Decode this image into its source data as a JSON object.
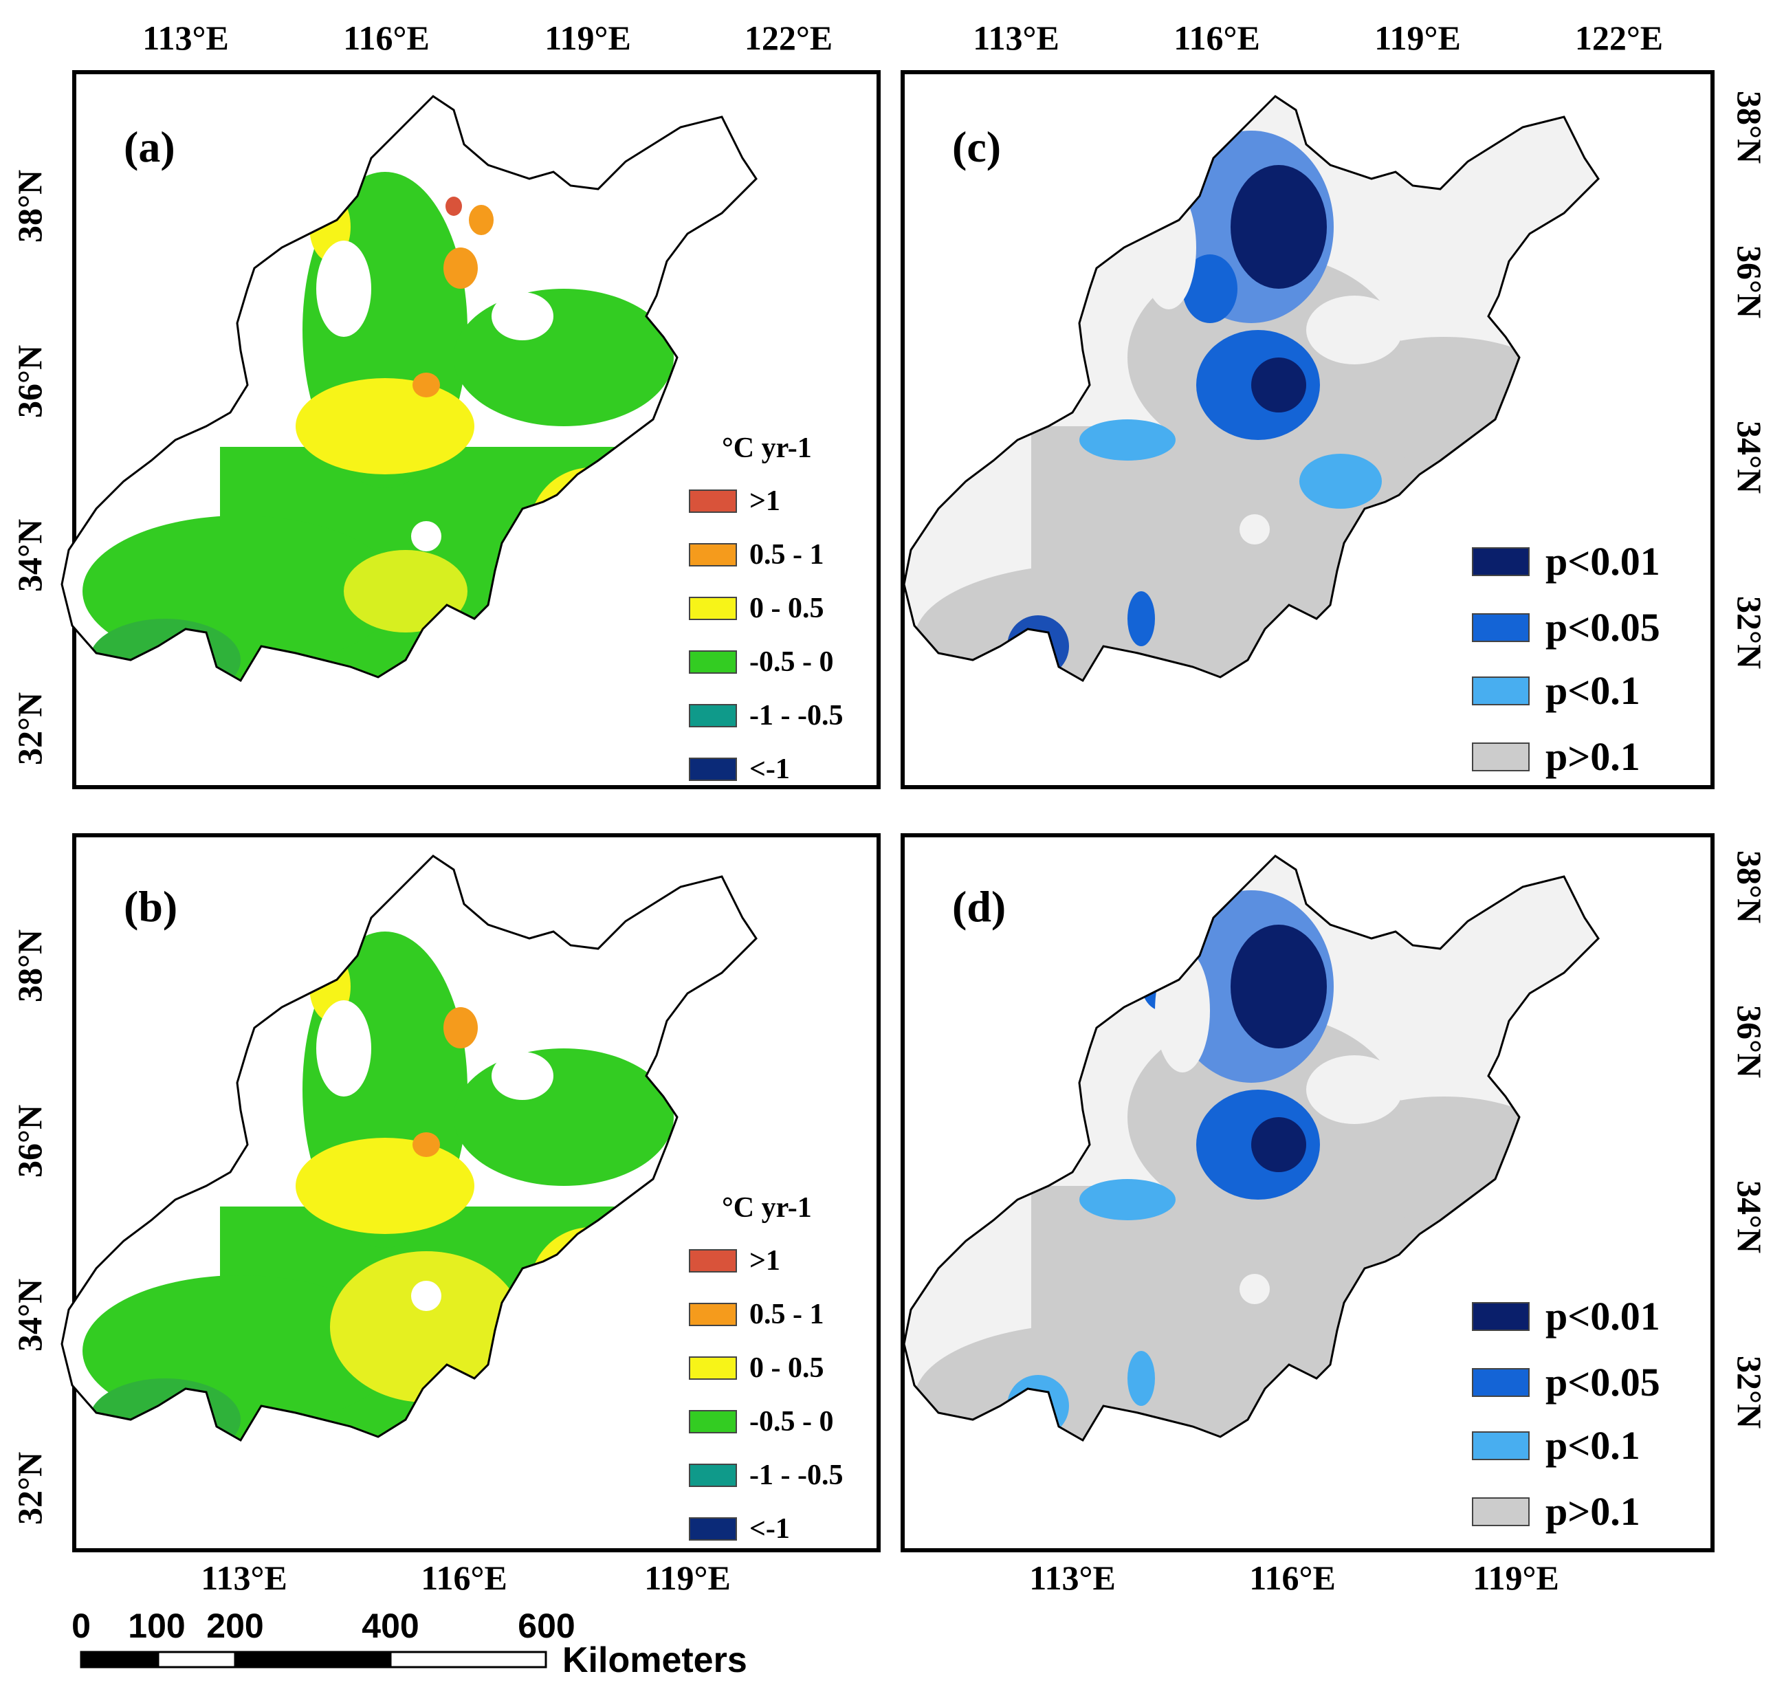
{
  "panels": [
    {
      "label": "(a)",
      "kind": "trend",
      "top_lon_ticks": [
        "113°E",
        "116°E",
        "119°E",
        "122°E"
      ],
      "left_lat_ticks": [
        "38°N",
        "36°N",
        "34°N",
        "32°N"
      ],
      "legend_title": "°C yr-1",
      "legend": [
        {
          "label": ">1",
          "color": "#d9533a"
        },
        {
          "label": "0.5 - 1",
          "color": "#f59b1c"
        },
        {
          "label": "0 - 0.5",
          "color": "#f7f418"
        },
        {
          "label": "-0.5 - 0",
          "color": "#33cc22"
        },
        {
          "label": "-1 - -0.5",
          "color": "#0f9a8a"
        },
        {
          "label": "<-1",
          "color": "#0b2a78"
        }
      ]
    },
    {
      "label": "(b)",
      "kind": "trend",
      "bottom_lon_ticks": [
        "113°E",
        "116°E",
        "119°E"
      ],
      "left_lat_ticks": [
        "38°N",
        "36°N",
        "34°N",
        "32°N"
      ],
      "legend_title": "°C yr-1",
      "legend": [
        {
          "label": ">1",
          "color": "#d9533a"
        },
        {
          "label": "0.5 - 1",
          "color": "#f59b1c"
        },
        {
          "label": "0 - 0.5",
          "color": "#f7f418"
        },
        {
          "label": "-0.5 - 0",
          "color": "#33cc22"
        },
        {
          "label": "-1 - -0.5",
          "color": "#0f9a8a"
        },
        {
          "label": "<-1",
          "color": "#0b2a78"
        }
      ]
    },
    {
      "label": "(c)",
      "kind": "significance",
      "top_lon_ticks": [
        "113°E",
        "116°E",
        "119°E",
        "122°E"
      ],
      "right_lat_ticks": [
        "38°N",
        "36°N",
        "34°N",
        "32°N"
      ],
      "legend": [
        {
          "label": "p<0.01",
          "color": "#0a1f6b"
        },
        {
          "label": "p<0.05",
          "color": "#1464d6"
        },
        {
          "label": "p<0.1",
          "color": "#48aef0"
        },
        {
          "label": "p>0.1",
          "color": "#cccccc"
        }
      ]
    },
    {
      "label": "(d)",
      "kind": "significance",
      "bottom_lon_ticks": [
        "113°E",
        "116°E",
        "119°E"
      ],
      "right_lat_ticks": [
        "38°N",
        "36°N",
        "34°N",
        "32°N"
      ],
      "legend": [
        {
          "label": "p<0.01",
          "color": "#0a1f6b"
        },
        {
          "label": "p<0.05",
          "color": "#1464d6"
        },
        {
          "label": "p<0.1",
          "color": "#48aef0"
        },
        {
          "label": "p>0.1",
          "color": "#cccccc"
        }
      ]
    }
  ],
  "scale_bar": {
    "ticks": [
      "0",
      "100",
      "200",
      "400",
      "600"
    ],
    "unit": "Kilometers"
  }
}
